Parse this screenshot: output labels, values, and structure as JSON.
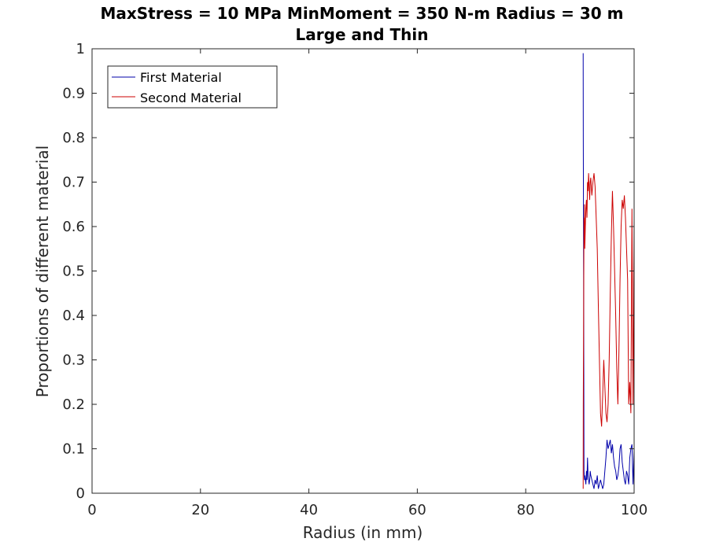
{
  "chart_data": {
    "type": "line",
    "title": "MaxStress = 10 MPa MinMoment = 350 N-m Radius = 30 m",
    "subtitle": "Large and Thin",
    "xlabel": "Radius (in mm)",
    "ylabel": "Proportions of different material",
    "xlim": [
      0,
      100
    ],
    "ylim": [
      0,
      1
    ],
    "xticks": [
      0,
      20,
      40,
      60,
      80,
      100
    ],
    "yticks": [
      0,
      0.1,
      0.2,
      0.3,
      0.4,
      0.5,
      0.6,
      0.7,
      0.8,
      0.9,
      1
    ],
    "grid": false,
    "legend_position": "top-left",
    "series": [
      {
        "name": "First Material",
        "color": "#0000aa",
        "x": [
          90.6,
          90.62,
          90.7,
          90.75,
          90.8,
          90.85,
          90.9,
          91.0,
          91.1,
          91.2,
          91.3,
          91.4,
          91.5,
          91.6,
          91.7,
          91.8,
          91.9,
          92.0,
          92.2,
          92.4,
          92.6,
          92.8,
          93.0,
          93.2,
          93.4,
          93.6,
          93.8,
          94.0,
          94.2,
          94.4,
          94.6,
          94.8,
          95.0,
          95.2,
          95.4,
          95.6,
          95.8,
          96.0,
          96.2,
          96.4,
          96.6,
          96.8,
          97.0,
          97.2,
          97.4,
          97.6,
          97.8,
          98.0,
          98.2,
          98.4,
          98.6,
          98.8,
          99.0,
          99.2,
          99.4,
          99.6,
          99.8,
          100.0
        ],
        "y": [
          0.99,
          0.8,
          0.4,
          0.05,
          0.04,
          0.03,
          0.04,
          0.03,
          0.02,
          0.05,
          0.03,
          0.08,
          0.04,
          0.03,
          0.02,
          0.03,
          0.05,
          0.04,
          0.03,
          0.02,
          0.01,
          0.03,
          0.02,
          0.04,
          0.01,
          0.02,
          0.03,
          0.02,
          0.01,
          0.02,
          0.05,
          0.08,
          0.12,
          0.1,
          0.11,
          0.12,
          0.09,
          0.11,
          0.08,
          0.06,
          0.05,
          0.03,
          0.04,
          0.06,
          0.1,
          0.11,
          0.07,
          0.05,
          0.03,
          0.02,
          0.05,
          0.04,
          0.02,
          0.08,
          0.1,
          0.11,
          0.02,
          0.1
        ]
      },
      {
        "name": "Second Material",
        "color": "#cc0000",
        "x": [
          90.6,
          90.62,
          90.7,
          90.75,
          90.8,
          90.85,
          90.9,
          91.0,
          91.1,
          91.2,
          91.3,
          91.4,
          91.5,
          91.6,
          91.7,
          91.8,
          91.9,
          92.0,
          92.2,
          92.4,
          92.6,
          92.8,
          93.0,
          93.2,
          93.4,
          93.6,
          93.8,
          94.0,
          94.2,
          94.4,
          94.6,
          94.8,
          95.0,
          95.2,
          95.4,
          95.6,
          95.8,
          96.0,
          96.2,
          96.4,
          96.6,
          96.8,
          97.0,
          97.2,
          97.4,
          97.6,
          97.8,
          98.0,
          98.2,
          98.4,
          98.6,
          98.8,
          99.0,
          99.2,
          99.4,
          99.6,
          99.8,
          100.0
        ],
        "y": [
          0.01,
          0.2,
          0.45,
          0.62,
          0.58,
          0.65,
          0.55,
          0.6,
          0.64,
          0.66,
          0.62,
          0.7,
          0.68,
          0.72,
          0.69,
          0.66,
          0.7,
          0.71,
          0.67,
          0.7,
          0.72,
          0.69,
          0.62,
          0.55,
          0.42,
          0.3,
          0.18,
          0.15,
          0.22,
          0.3,
          0.24,
          0.18,
          0.16,
          0.2,
          0.3,
          0.45,
          0.58,
          0.68,
          0.6,
          0.5,
          0.4,
          0.28,
          0.2,
          0.32,
          0.48,
          0.6,
          0.66,
          0.64,
          0.67,
          0.62,
          0.55,
          0.48,
          0.2,
          0.25,
          0.18,
          0.64,
          0.2,
          0.62
        ]
      }
    ]
  }
}
